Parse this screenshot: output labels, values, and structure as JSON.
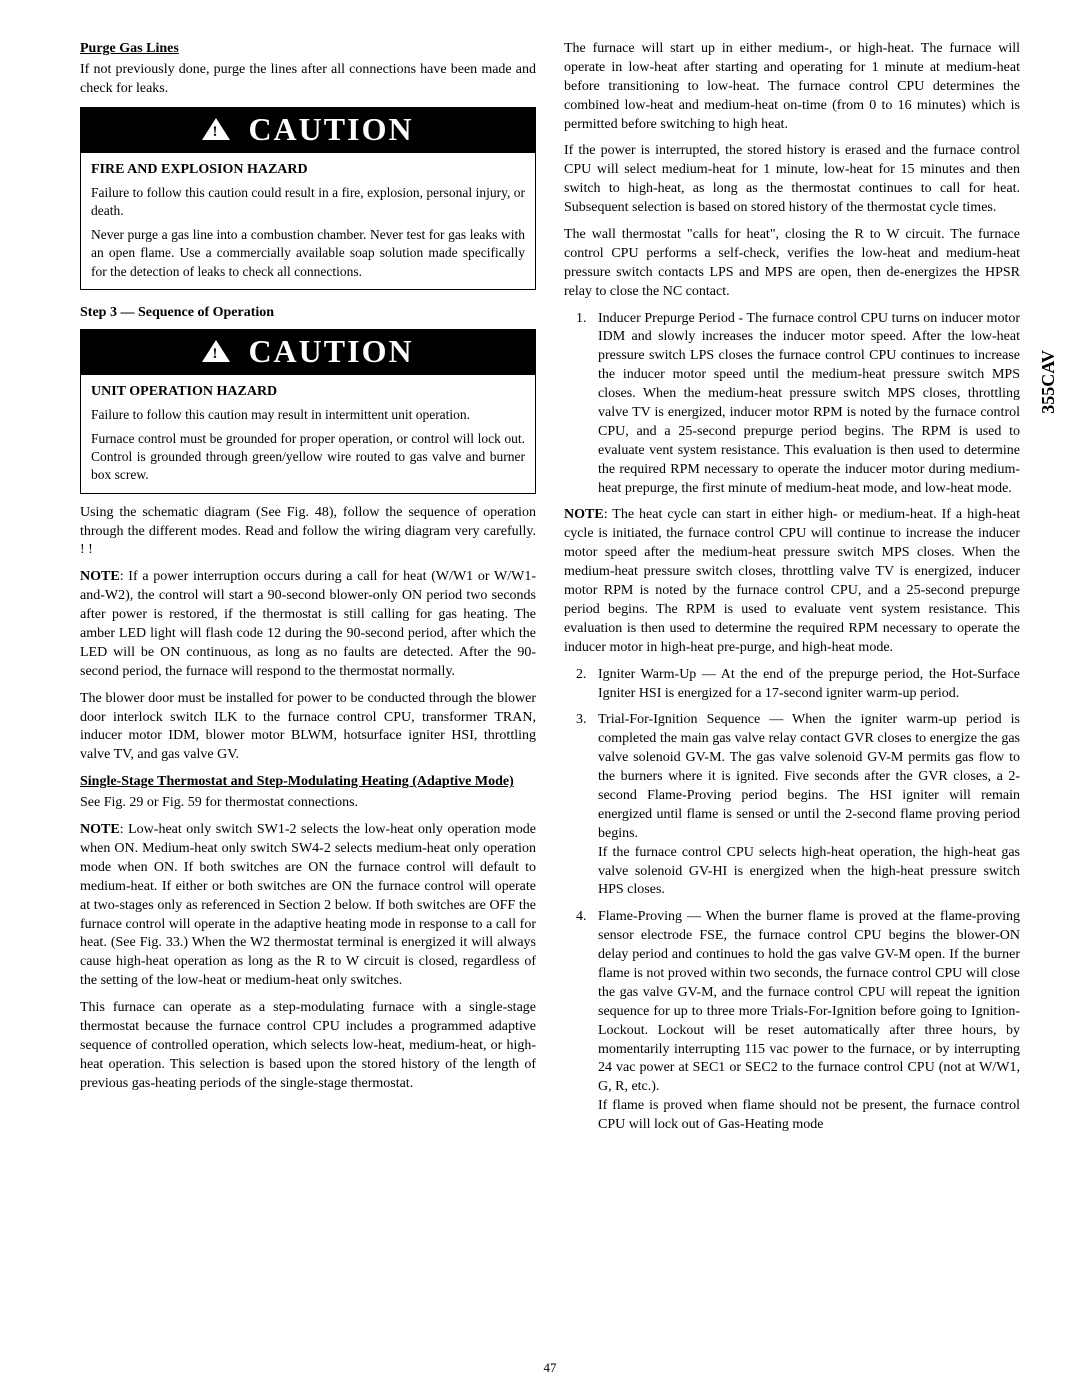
{
  "sideTab": "355CAV",
  "pageNum": "47",
  "left": {
    "purgeHead": "Purge Gas Lines",
    "purgeText": "If not previously done, purge the lines after all connections have been made and check for leaks.",
    "caution1": {
      "title": "CAUTION",
      "hazard": "FIRE AND EXPLOSION  HAZARD",
      "p1": "Failure to follow this caution could result in a fire, explosion, personal injury, or death.",
      "p2": "Never purge a gas line into a combustion chamber.  Never test for gas leaks with an open flame.  Use a commercially available soap solution made specifically for the detection of leaks to check all connections."
    },
    "step3": "Step 3 — Sequence of Operation",
    "caution2": {
      "title": "CAUTION",
      "hazard": "UNIT OPERATION HAZARD",
      "p1": "Failure to follow this caution may result in intermittent unit operation.",
      "p2": "Furnace control must be grounded for proper operation, or control will lock out. Control is grounded through green/yellow wire routed to gas valve and burner box screw."
    },
    "para1": "Using the schematic diagram (See Fig. 48), follow the sequence of operation through the different modes. Read and follow the wiring diagram very carefully. ! !",
    "note1Lead": "NOTE",
    "note1": ":  If a power interruption occurs during a call for heat (W/W1 or W/W1-and-W2), the control will start a 90-second blower-only ON period two seconds after power is restored, if the thermostat is still calling for gas heating. The amber LED light will flash code 12 during the 90-second period, after which the LED will be ON continuous, as long as no faults are detected. After the 90-second period, the furnace will respond to the thermostat normally.",
    "para2": "The blower door must be installed for power to be conducted through the blower door interlock switch ILK to the furnace control CPU, transformer TRAN, inducer motor IDM, blower motor BLWM, hotsurface igniter HSI, throttling valve TV, and gas valve GV.",
    "subHead": "Single-Stage Thermostat and Step-Modulating Heating (Adaptive Mode)",
    "para3": "See Fig. 29 or Fig. 59 for thermostat connections.",
    "note2Lead": "NOTE",
    "note2": ":  Low-heat only switch SW1-2 selects the low-heat only operation mode when ON. Medium-heat only switch SW4-2 selects medium-heat only operation mode when ON. If both switches are ON the furnace control will default to medium-heat. If either or both switches are ON the furnace control will operate at two-stages only as referenced in Section 2 below. If both switches are OFF the furnace control will operate in the adaptive heating mode in response to a call for heat. (See Fig. 33.) When the W2 thermostat terminal is energized it will always cause high-heat operation as long as the R to W circuit is closed, regardless of the setting of the low-heat or medium-heat only switches.",
    "para4": "This furnace can operate as a step-modulating furnace with a single-stage thermostat because the furnace control CPU includes a programmed adaptive sequence of controlled operation, which selects low-heat, medium-heat, or high-heat operation. This selection is based upon the stored history of the length of previous gas-heating periods of the single-stage thermostat."
  },
  "right": {
    "para1": "The furnace will start up in either medium-, or high-heat. The furnace will operate in low-heat after starting and operating for 1 minute at medium-heat before transitioning to low-heat. The furnace control CPU determines the combined low-heat and medium-heat on-time (from 0 to 16 minutes) which is permitted before switching to high heat.",
    "para2": "If the power is interrupted, the stored history is erased and the furnace control CPU will select medium-heat for 1 minute, low-heat for 15 minutes and then switch to high-heat, as long as the thermostat continues to call for heat. Subsequent selection is based on stored history of the thermostat cycle times.",
    "para3": "The wall thermostat \"calls for heat\", closing the R to W circuit. The furnace control CPU performs a self-check, verifies the low-heat and medium-heat pressure switch contacts LPS and MPS are open, then de-energizes the HPSR relay to close the NC contact.",
    "li1num": "1.",
    "li1": "Inducer Prepurge Period - The furnace control CPU turns on inducer motor IDM and slowly increases the inducer motor speed. After the low-heat pressure switch LPS closes the furnace control CPU continues to increase the inducer motor speed until the medium-heat pressure switch MPS closes. When the medium-heat pressure switch MPS closes, throttling valve TV is energized, inducer motor RPM is noted by the furnace control CPU, and a 25-second prepurge period begins. The RPM is used to evaluate vent system resistance. This evaluation is then used to determine the required RPM necessary to operate the inducer motor during medium-heat prepurge, the first minute of medium-heat mode, and low-heat mode.",
    "note3Lead": "NOTE",
    "note3": ":  The heat cycle can start in either high- or medium-heat. If a high-heat cycle is initiated, the furnace control CPU will continue to increase the inducer motor speed after the medium-heat pressure switch MPS closes. When the medium-heat pressure switch closes, throttling valve TV is energized, inducer motor RPM is noted by the furnace control CPU, and a 25-second prepurge period begins. The RPM is used to evaluate vent system resistance. This evaluation is then used to determine the required RPM necessary to operate the inducer motor in high-heat pre-purge, and high-heat mode.",
    "li2num": "2.",
    "li2": "Igniter Warm-Up — At the end of the prepurge period, the Hot-Surface Igniter HSI is energized for a 17-second igniter warm-up period.",
    "li3num": "3.",
    "li3a": "Trial-For-Ignition Sequence — When the igniter warm-up period is completed the main gas valve relay contact GVR closes to energize the gas valve solenoid GV-M. The gas valve solenoid GV-M permits gas flow to the burners where it is ignited. Five seconds after the GVR closes, a 2- second Flame-Proving period begins. The HSI igniter will remain energized until flame is sensed or until the 2-second flame proving period begins.",
    "li3b": "If the furnace control CPU selects high-heat operation, the high-heat gas valve solenoid GV-HI is energized when the high-heat pressure switch HPS closes.",
    "li4num": "4.",
    "li4a": "Flame-Proving — When the burner flame is proved at the flame-proving sensor electrode FSE, the furnace control CPU begins the blower-ON delay period and continues to hold the gas valve GV-M open. If the burner flame is not proved within two seconds, the furnace control CPU will close the gas valve GV-M, and the furnace control CPU will repeat the ignition sequence for up to three more Trials-For-Ignition before going to Ignition-Lockout. Lockout will be reset automatically after three hours, by momentarily interrupting 115 vac power to the furnace, or by interrupting 24 vac power at SEC1 or SEC2 to the furnace control CPU (not at W/W1, G, R, etc.).",
    "li4b": "If flame is proved when flame should not be present, the furnace control CPU will lock out of Gas-Heating mode"
  }
}
